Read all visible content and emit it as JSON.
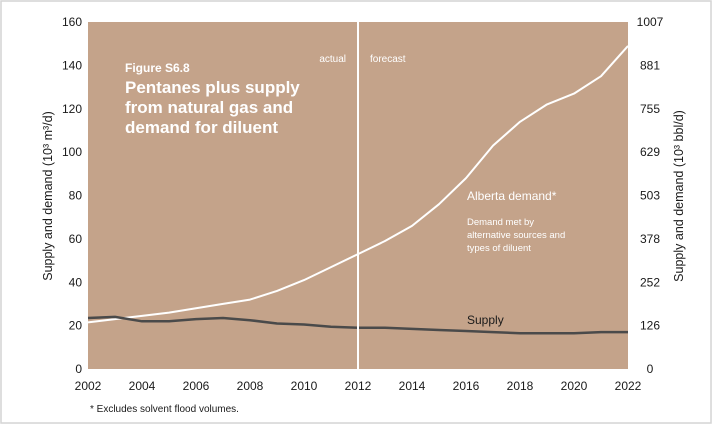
{
  "colors": {
    "plot_background": "#c4a38a",
    "demand_line": "#ffffff",
    "supply_line": "#4a4a4a",
    "divider_line": "#ffffff",
    "frame": "#d4d4d4"
  },
  "figure": {
    "number": "Figure S6.8",
    "title_lines": [
      "Pentanes plus supply",
      "from natural gas and",
      "demand for diluent"
    ]
  },
  "chart_data": {
    "type": "line",
    "x_ticks": [
      "2002",
      "2004",
      "2006",
      "2008",
      "2010",
      "2012",
      "2014",
      "2016",
      "2018",
      "2020",
      "2022"
    ],
    "xlim": [
      2002,
      2022
    ],
    "ylim": [
      0,
      160
    ],
    "y_ticks": [
      "0",
      "20",
      "40",
      "60",
      "80",
      "100",
      "120",
      "140",
      "160"
    ],
    "y2_ticks": [
      "0",
      "126",
      "252",
      "378",
      "503",
      "629",
      "755",
      "881",
      "1007"
    ],
    "ylabel_left": "Supply and demand (10³ m³/d)",
    "ylabel_right": "Supply and demand (10³ bbl/d)",
    "grid": false,
    "divider_x": 2012,
    "phase_labels": {
      "left": "actual",
      "right": "forecast"
    },
    "series": [
      {
        "name": "Alberta demand*",
        "note_lines": [
          "Demand met by",
          "alternative sources and",
          "types of diluent"
        ],
        "x": [
          2002,
          2003,
          2004,
          2005,
          2006,
          2007,
          2008,
          2009,
          2010,
          2011,
          2012,
          2013,
          2014,
          2015,
          2016,
          2017,
          2018,
          2019,
          2020,
          2021,
          2022
        ],
        "values": [
          21.5,
          23,
          24.5,
          26,
          28,
          30,
          32,
          36,
          41,
          47,
          53,
          59,
          66,
          76,
          88,
          103,
          114,
          122,
          127,
          135,
          149
        ]
      },
      {
        "name": "Supply",
        "x": [
          2002,
          2003,
          2004,
          2005,
          2006,
          2007,
          2008,
          2009,
          2010,
          2011,
          2012,
          2013,
          2014,
          2015,
          2016,
          2017,
          2018,
          2019,
          2020,
          2021,
          2022
        ],
        "values": [
          23.5,
          24,
          22,
          22,
          23,
          23.5,
          22.5,
          21,
          20.5,
          19.5,
          19,
          19,
          18.5,
          18,
          17.5,
          17,
          16.5,
          16.5,
          16.5,
          17,
          17
        ]
      }
    ],
    "footnote": "* Excludes solvent flood volumes."
  }
}
